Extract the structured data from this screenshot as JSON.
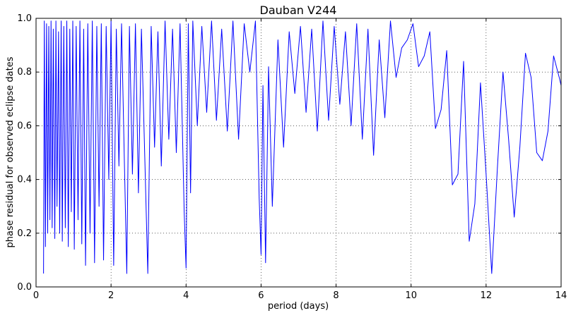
{
  "chart_data": {
    "type": "line",
    "title": "Dauban V244",
    "xlabel": "period (days)",
    "ylabel": "phase residual for observed eclipse dates",
    "xlim": [
      0,
      14
    ],
    "ylim": [
      0.0,
      1.0
    ],
    "xticks": [
      "0",
      "2",
      "4",
      "6",
      "8",
      "10",
      "12",
      "14"
    ],
    "yticks": [
      "0.0",
      "0.2",
      "0.4",
      "0.6",
      "0.8",
      "1.0"
    ],
    "grid": true,
    "line_color": "#0000ff",
    "series": [
      {
        "values": [
          [
            0.2,
            0.05
          ],
          [
            0.22,
            0.99
          ],
          [
            0.25,
            0.15
          ],
          [
            0.28,
            0.98
          ],
          [
            0.31,
            0.2
          ],
          [
            0.34,
            0.97
          ],
          [
            0.37,
            0.25
          ],
          [
            0.4,
            0.99
          ],
          [
            0.43,
            0.22
          ],
          [
            0.46,
            0.96
          ],
          [
            0.5,
            0.18
          ],
          [
            0.53,
            0.99
          ],
          [
            0.56,
            0.3
          ],
          [
            0.6,
            0.95
          ],
          [
            0.63,
            0.2
          ],
          [
            0.67,
            0.99
          ],
          [
            0.7,
            0.17
          ],
          [
            0.74,
            0.97
          ],
          [
            0.78,
            0.22
          ],
          [
            0.82,
            0.99
          ],
          [
            0.86,
            0.15
          ],
          [
            0.9,
            0.96
          ],
          [
            0.94,
            0.28
          ],
          [
            0.98,
            0.99
          ],
          [
            1.02,
            0.14
          ],
          [
            1.07,
            0.97
          ],
          [
            1.12,
            0.25
          ],
          [
            1.17,
            0.99
          ],
          [
            1.22,
            0.16
          ],
          [
            1.27,
            0.96
          ],
          [
            1.32,
            0.08
          ],
          [
            1.38,
            0.98
          ],
          [
            1.44,
            0.2
          ],
          [
            1.5,
            0.99
          ],
          [
            1.56,
            0.09
          ],
          [
            1.62,
            0.97
          ],
          [
            1.68,
            0.3
          ],
          [
            1.74,
            0.98
          ],
          [
            1.8,
            0.1
          ],
          [
            1.87,
            0.97
          ],
          [
            1.94,
            0.4
          ],
          [
            2.0,
            0.99
          ],
          [
            2.07,
            0.08
          ],
          [
            2.14,
            0.96
          ],
          [
            2.21,
            0.45
          ],
          [
            2.28,
            0.98
          ],
          [
            2.35,
            0.5
          ],
          [
            2.42,
            0.05
          ],
          [
            2.49,
            0.97
          ],
          [
            2.57,
            0.42
          ],
          [
            2.65,
            0.98
          ],
          [
            2.73,
            0.35
          ],
          [
            2.81,
            0.96
          ],
          [
            2.9,
            0.48
          ],
          [
            2.98,
            0.05
          ],
          [
            3.07,
            0.97
          ],
          [
            3.16,
            0.52
          ],
          [
            3.25,
            0.95
          ],
          [
            3.34,
            0.45
          ],
          [
            3.44,
            0.99
          ],
          [
            3.54,
            0.55
          ],
          [
            3.64,
            0.96
          ],
          [
            3.74,
            0.5
          ],
          [
            3.84,
            0.98
          ],
          [
            3.95,
            0.28
          ],
          [
            4.0,
            0.07
          ],
          [
            4.06,
            0.98
          ],
          [
            4.12,
            0.35
          ],
          [
            4.18,
            0.99
          ],
          [
            4.3,
            0.6
          ],
          [
            4.42,
            0.97
          ],
          [
            4.55,
            0.65
          ],
          [
            4.68,
            0.99
          ],
          [
            4.81,
            0.62
          ],
          [
            4.95,
            0.96
          ],
          [
            5.1,
            0.58
          ],
          [
            5.25,
            0.99
          ],
          [
            5.4,
            0.55
          ],
          [
            5.55,
            0.98
          ],
          [
            5.7,
            0.8
          ],
          [
            5.85,
            0.99
          ],
          [
            5.95,
            0.33
          ],
          [
            6.0,
            0.12
          ],
          [
            6.05,
            0.75
          ],
          [
            6.12,
            0.09
          ],
          [
            6.2,
            0.82
          ],
          [
            6.3,
            0.3
          ],
          [
            6.45,
            0.92
          ],
          [
            6.6,
            0.52
          ],
          [
            6.75,
            0.95
          ],
          [
            6.9,
            0.72
          ],
          [
            7.05,
            0.97
          ],
          [
            7.2,
            0.65
          ],
          [
            7.35,
            0.96
          ],
          [
            7.5,
            0.58
          ],
          [
            7.65,
            0.99
          ],
          [
            7.8,
            0.62
          ],
          [
            7.95,
            0.97
          ],
          [
            8.1,
            0.68
          ],
          [
            8.25,
            0.95
          ],
          [
            8.4,
            0.6
          ],
          [
            8.55,
            0.98
          ],
          [
            8.7,
            0.55
          ],
          [
            8.85,
            0.96
          ],
          [
            9.0,
            0.49
          ],
          [
            9.15,
            0.92
          ],
          [
            9.3,
            0.63
          ],
          [
            9.45,
            0.99
          ],
          [
            9.6,
            0.78
          ],
          [
            9.75,
            0.89
          ],
          [
            9.9,
            0.92
          ],
          [
            10.05,
            0.98
          ],
          [
            10.2,
            0.82
          ],
          [
            10.35,
            0.86
          ],
          [
            10.5,
            0.95
          ],
          [
            10.65,
            0.59
          ],
          [
            10.8,
            0.66
          ],
          [
            10.95,
            0.88
          ],
          [
            11.1,
            0.38
          ],
          [
            11.25,
            0.42
          ],
          [
            11.4,
            0.84
          ],
          [
            11.55,
            0.17
          ],
          [
            11.7,
            0.31
          ],
          [
            11.85,
            0.76
          ],
          [
            12.0,
            0.42
          ],
          [
            12.15,
            0.05
          ],
          [
            12.3,
            0.44
          ],
          [
            12.45,
            0.8
          ],
          [
            12.6,
            0.55
          ],
          [
            12.75,
            0.26
          ],
          [
            12.9,
            0.52
          ],
          [
            13.05,
            0.87
          ],
          [
            13.2,
            0.78
          ],
          [
            13.35,
            0.5
          ],
          [
            13.5,
            0.47
          ],
          [
            13.65,
            0.58
          ],
          [
            13.8,
            0.86
          ],
          [
            13.95,
            0.78
          ],
          [
            14.0,
            0.75
          ]
        ]
      }
    ]
  }
}
